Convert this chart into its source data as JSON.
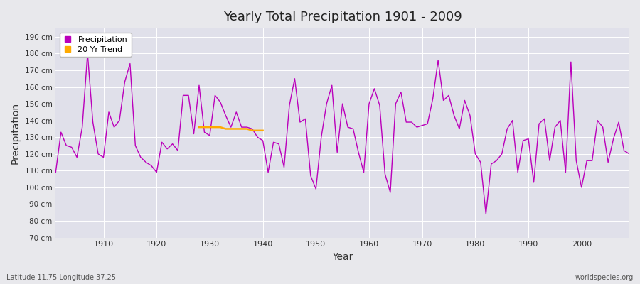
{
  "title": "Yearly Total Precipitation 1901 - 2009",
  "xlabel": "Year",
  "ylabel": "Precipitation",
  "subtitle_left": "Latitude 11.75 Longitude 37.25",
  "subtitle_right": "worldspecies.org",
  "bg_color": "#e8e8ec",
  "plot_bg_color": "#e0e0ea",
  "grid_color": "#ffffff",
  "line_color": "#bb00bb",
  "trend_color": "#ffaa00",
  "ylim": [
    70,
    195
  ],
  "yticks": [
    70,
    80,
    90,
    100,
    110,
    120,
    130,
    140,
    150,
    160,
    170,
    180,
    190
  ],
  "ytick_labels": [
    "70 cm",
    "80 cm",
    "90 cm",
    "100 cm",
    "110 cm",
    "120 cm",
    "130 cm",
    "140 cm",
    "150 cm",
    "160 cm",
    "170 cm",
    "180 cm",
    "190 cm"
  ],
  "years": [
    1901,
    1902,
    1903,
    1904,
    1905,
    1906,
    1907,
    1908,
    1909,
    1910,
    1911,
    1912,
    1913,
    1914,
    1915,
    1916,
    1917,
    1918,
    1919,
    1920,
    1921,
    1922,
    1923,
    1924,
    1925,
    1926,
    1927,
    1928,
    1929,
    1930,
    1931,
    1932,
    1933,
    1934,
    1935,
    1936,
    1937,
    1938,
    1939,
    1940,
    1941,
    1942,
    1943,
    1944,
    1945,
    1946,
    1947,
    1948,
    1949,
    1950,
    1951,
    1952,
    1953,
    1954,
    1955,
    1956,
    1957,
    1958,
    1959,
    1960,
    1961,
    1962,
    1963,
    1964,
    1965,
    1966,
    1967,
    1968,
    1969,
    1970,
    1971,
    1972,
    1973,
    1974,
    1975,
    1976,
    1977,
    1978,
    1979,
    1980,
    1981,
    1982,
    1983,
    1984,
    1985,
    1986,
    1987,
    1988,
    1989,
    1990,
    1991,
    1992,
    1993,
    1994,
    1995,
    1996,
    1997,
    1998,
    1999,
    2000,
    2001,
    2002,
    2003,
    2004,
    2005,
    2006,
    2007,
    2008,
    2009
  ],
  "precip": [
    109,
    133,
    125,
    124,
    118,
    136,
    180,
    139,
    120,
    118,
    145,
    136,
    140,
    163,
    174,
    125,
    118,
    115,
    113,
    109,
    127,
    123,
    126,
    122,
    155,
    155,
    132,
    161,
    133,
    131,
    155,
    151,
    143,
    136,
    145,
    136,
    136,
    135,
    130,
    128,
    109,
    127,
    126,
    112,
    149,
    165,
    139,
    141,
    107,
    99,
    130,
    150,
    161,
    121,
    150,
    136,
    135,
    121,
    109,
    150,
    159,
    149,
    108,
    97,
    150,
    157,
    139,
    139,
    136,
    137,
    138,
    153,
    176,
    152,
    155,
    143,
    135,
    152,
    143,
    120,
    115,
    84,
    114,
    116,
    120,
    135,
    140,
    109,
    128,
    129,
    103,
    138,
    141,
    116,
    136,
    140,
    109,
    175,
    116,
    100,
    116,
    116,
    140,
    136,
    115,
    129,
    139,
    122,
    120
  ],
  "trend_years": [
    1928,
    1929,
    1930,
    1931,
    1932,
    1933,
    1934,
    1935,
    1936,
    1937,
    1938,
    1939,
    1940
  ],
  "trend_values": [
    136,
    136,
    136,
    136,
    136,
    135,
    135,
    135,
    135,
    135,
    134,
    134,
    134
  ],
  "xlim_left": 1901,
  "xlim_right": 2009
}
